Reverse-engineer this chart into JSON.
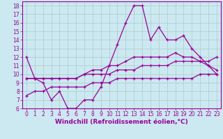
{
  "title": "",
  "xlabel": "Windchill (Refroidissement éolien,°C)",
  "ylabel": "",
  "bg_color": "#cce8f0",
  "grid_color": "#aacccc",
  "line_color": "#990099",
  "x": [
    0,
    1,
    2,
    3,
    4,
    5,
    6,
    7,
    8,
    9,
    10,
    11,
    12,
    13,
    14,
    15,
    16,
    17,
    18,
    19,
    20,
    21,
    22,
    23
  ],
  "line1": [
    12.0,
    9.5,
    9.0,
    7.0,
    8.0,
    6.0,
    6.0,
    7.0,
    7.0,
    8.5,
    11.0,
    13.5,
    16.0,
    18.0,
    18.0,
    14.0,
    15.5,
    14.0,
    14.0,
    14.5,
    13.0,
    12.0,
    11.0,
    10.0
  ],
  "line2": [
    9.5,
    9.5,
    9.5,
    9.5,
    9.5,
    9.5,
    9.5,
    10.0,
    10.5,
    10.5,
    11.0,
    11.0,
    11.5,
    12.0,
    12.0,
    12.0,
    12.0,
    12.0,
    12.5,
    12.0,
    12.0,
    11.5,
    11.0,
    10.5
  ],
  "line3": [
    9.5,
    9.5,
    9.5,
    9.5,
    9.5,
    9.5,
    9.5,
    10.0,
    10.0,
    10.0,
    10.0,
    10.5,
    10.5,
    10.5,
    11.0,
    11.0,
    11.0,
    11.0,
    11.5,
    11.5,
    11.5,
    11.5,
    11.5,
    12.0
  ],
  "line4": [
    7.5,
    8.0,
    8.0,
    8.5,
    8.5,
    8.5,
    8.5,
    8.5,
    9.0,
    9.0,
    9.0,
    9.5,
    9.5,
    9.5,
    9.5,
    9.5,
    9.5,
    9.5,
    9.5,
    9.5,
    9.5,
    10.0,
    10.0,
    10.0
  ],
  "ylim": [
    6,
    18.5
  ],
  "yticks": [
    6,
    7,
    8,
    9,
    10,
    11,
    12,
    13,
    14,
    15,
    16,
    17,
    18
  ],
  "xticks": [
    0,
    1,
    2,
    3,
    4,
    5,
    6,
    7,
    8,
    9,
    10,
    11,
    12,
    13,
    14,
    15,
    16,
    17,
    18,
    19,
    20,
    21,
    22,
    23
  ],
  "tick_fontsize": 5.5,
  "xlabel_fontsize": 6.5
}
